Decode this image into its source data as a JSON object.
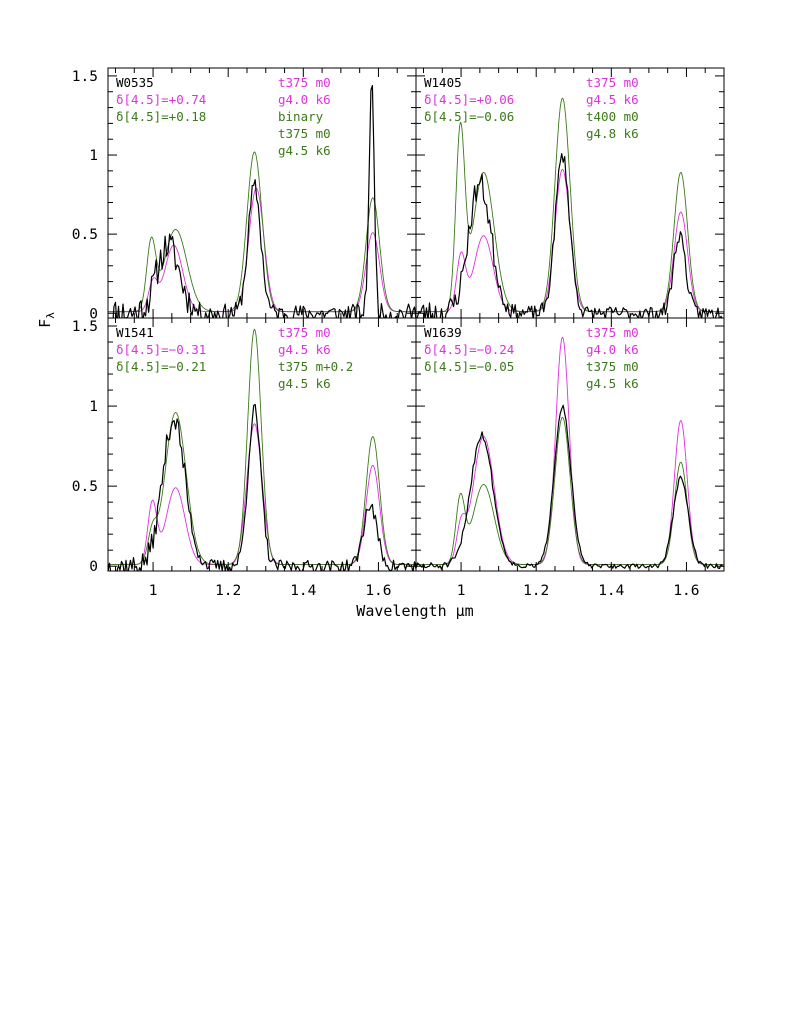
{
  "figure": {
    "xlabel": "Wavelength μm",
    "ylabel": "F",
    "ylabel_subscript": "λ"
  },
  "colors": {
    "observed": "#000000",
    "magenta": "#dd33dd",
    "green": "#3c7a1a"
  },
  "chart_data": [
    {
      "type": "line",
      "panel": "W0535",
      "xlim": [
        0.88,
        1.7
      ],
      "ylim": [
        -0.03,
        1.55
      ],
      "xticks": [
        "1",
        "1.2",
        "1.4",
        "1.6"
      ],
      "yticks": [
        "0",
        "0.5",
        "1",
        "1.5"
      ],
      "show_x_ticklabels": false,
      "show_y_ticklabels": true,
      "labels": {
        "name": "W0535",
        "delta_magenta": "δ[4.5]=+0.74",
        "delta_green": "δ[4.5]=+0.18",
        "model_magenta_1": "t375 m0",
        "model_magenta_2": "g4.0 k6",
        "model_green_1": "binary",
        "model_green_2": "t375 m0",
        "model_green_3": "g4.5 k6"
      },
      "series": [
        {
          "color": "magenta",
          "peaks": [
            [
              1.0,
              0.18,
              0.012
            ],
            [
              1.055,
              0.42,
              0.024
            ],
            [
              1.275,
              0.78,
              0.02
            ],
            [
              1.585,
              0.5,
              0.018
            ]
          ]
        },
        {
          "color": "green",
          "peaks": [
            [
              0.995,
              0.42,
              0.012
            ],
            [
              1.06,
              0.52,
              0.03
            ],
            [
              1.27,
              1.01,
              0.02
            ],
            [
              1.585,
              0.72,
              0.018
            ]
          ]
        },
        {
          "color": "observed",
          "noise": 0.1,
          "seed": 11,
          "peaks": [
            [
              1.04,
              0.43,
              0.03
            ],
            [
              1.27,
              0.8,
              0.017
            ],
            [
              1.582,
              1.45,
              0.007
            ]
          ]
        }
      ]
    },
    {
      "type": "line",
      "panel": "W1405",
      "xlim": [
        0.88,
        1.7
      ],
      "ylim": [
        -0.03,
        1.55
      ],
      "xticks": [
        "1",
        "1.2",
        "1.4",
        "1.6"
      ],
      "yticks": [
        "0",
        "0.5",
        "1",
        "1.5"
      ],
      "show_x_ticklabels": false,
      "show_y_ticklabels": false,
      "labels": {
        "name": "W1405",
        "delta_magenta": "δ[4.5]=+0.06",
        "delta_green": "δ[4.5]=−0.06",
        "model_magenta_1": "t375 m0",
        "model_magenta_2": "g4.5 k6",
        "model_green_1": "t400 m0",
        "model_green_2": "g4.8 k6"
      },
      "series": [
        {
          "color": "magenta",
          "peaks": [
            [
              1.0,
              0.35,
              0.012
            ],
            [
              1.06,
              0.48,
              0.025
            ],
            [
              1.27,
              0.9,
              0.02
            ],
            [
              1.585,
              0.63,
              0.018
            ]
          ]
        },
        {
          "color": "green",
          "peaks": [
            [
              0.998,
              1.12,
              0.012
            ],
            [
              1.06,
              0.88,
              0.028
            ],
            [
              1.27,
              1.35,
              0.02
            ],
            [
              1.585,
              0.88,
              0.018
            ]
          ]
        },
        {
          "color": "observed",
          "noise": 0.08,
          "seed": 23,
          "peaks": [
            [
              1.05,
              0.82,
              0.03
            ],
            [
              1.27,
              1.0,
              0.019
            ],
            [
              1.582,
              0.5,
              0.016
            ]
          ]
        }
      ]
    },
    {
      "type": "line",
      "panel": "W1541",
      "xlim": [
        0.88,
        1.7
      ],
      "ylim": [
        -0.03,
        1.55
      ],
      "xticks": [
        "1",
        "1.2",
        "1.4",
        "1.6"
      ],
      "yticks": [
        "0",
        "0.5",
        "1",
        "1.5"
      ],
      "show_x_ticklabels": true,
      "show_y_ticklabels": true,
      "labels": {
        "name": "W1541",
        "delta_magenta": "δ[4.5]=−0.31",
        "delta_green": "δ[4.5]=−0.21",
        "model_magenta_1": "t375 m0",
        "model_magenta_2": "g4.5 k6",
        "model_green_1": "t375 m+0.2",
        "model_green_2": "g4.5 k6"
      },
      "series": [
        {
          "color": "magenta",
          "peaks": [
            [
              0.998,
              0.38,
              0.012
            ],
            [
              1.06,
              0.48,
              0.025
            ],
            [
              1.27,
              0.88,
              0.02
            ],
            [
              1.585,
              0.62,
              0.018
            ]
          ]
        },
        {
          "color": "green",
          "peaks": [
            [
              0.998,
              0.18,
              0.012
            ],
            [
              1.06,
              0.95,
              0.028
            ],
            [
              1.27,
              1.47,
              0.018
            ],
            [
              1.585,
              0.8,
              0.018
            ]
          ]
        },
        {
          "color": "observed",
          "noise": 0.07,
          "seed": 37,
          "peaks": [
            [
              1.055,
              0.92,
              0.03
            ],
            [
              1.27,
              0.98,
              0.017
            ],
            [
              1.578,
              0.38,
              0.018
            ]
          ]
        }
      ]
    },
    {
      "type": "line",
      "panel": "W1639",
      "xlim": [
        0.88,
        1.7
      ],
      "ylim": [
        -0.03,
        1.55
      ],
      "xticks": [
        "1",
        "1.2",
        "1.4",
        "1.6"
      ],
      "yticks": [
        "0",
        "0.5",
        "1",
        "1.5"
      ],
      "show_x_ticklabels": true,
      "show_y_ticklabels": false,
      "labels": {
        "name": "W1639",
        "delta_magenta": "δ[4.5]=−0.24",
        "delta_green": "δ[4.5]=−0.05",
        "model_magenta_1": "t375 m0",
        "model_magenta_2": "g4.0 k6",
        "model_green_1": "t375 m0",
        "model_green_2": "g4.5 k6"
      },
      "series": [
        {
          "color": "magenta",
          "peaks": [
            [
              1.0,
              0.22,
              0.012
            ],
            [
              1.06,
              0.8,
              0.028
            ],
            [
              1.27,
              1.42,
              0.018
            ],
            [
              1.585,
              0.9,
              0.017
            ]
          ]
        },
        {
          "color": "green",
          "peaks": [
            [
              0.998,
              0.4,
              0.012
            ],
            [
              1.06,
              0.5,
              0.028
            ],
            [
              1.27,
              0.92,
              0.02
            ],
            [
              1.585,
              0.64,
              0.017
            ]
          ]
        },
        {
          "color": "observed",
          "noise": 0.025,
          "seed": 51,
          "peaks": [
            [
              1.055,
              0.82,
              0.03
            ],
            [
              1.27,
              1.0,
              0.022
            ],
            [
              1.585,
              0.55,
              0.02
            ]
          ]
        }
      ]
    }
  ]
}
